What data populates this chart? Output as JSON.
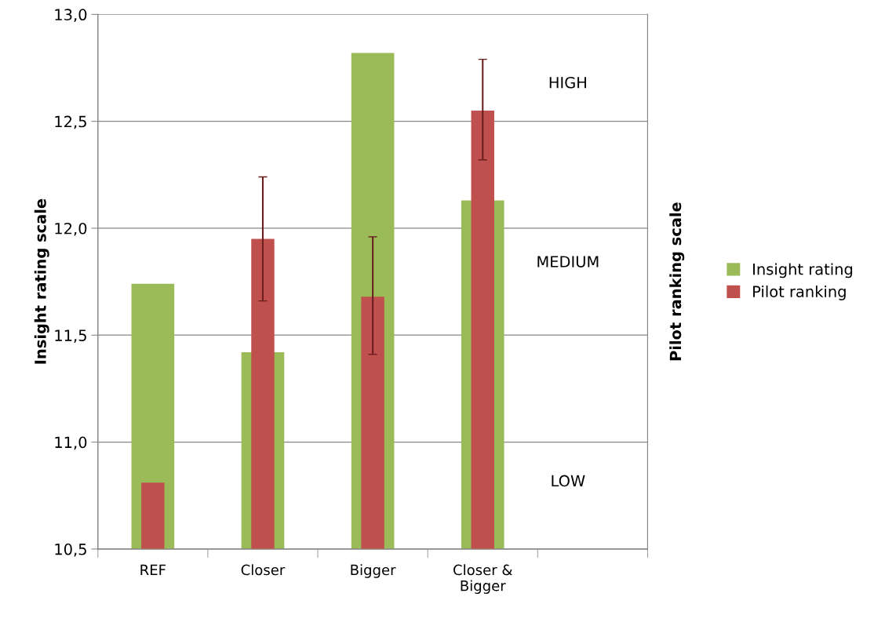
{
  "chart_data": {
    "type": "bar",
    "categories": [
      "REF",
      "Closer",
      "Bigger",
      "Closer &\nBigger",
      null
    ],
    "series": [
      {
        "name": "Insight rating",
        "color": "#9bbb59",
        "values": [
          11.74,
          11.42,
          12.82,
          12.13,
          null
        ]
      },
      {
        "name": "Pilot ranking",
        "color": "#c0504d",
        "values": [
          10.81,
          11.95,
          11.68,
          12.55,
          null
        ],
        "errors": [
          null,
          [
            11.66,
            12.24
          ],
          [
            11.41,
            11.96
          ],
          [
            12.32,
            12.79
          ],
          null
        ]
      }
    ],
    "ylabel": "Insight rating scale",
    "y2label": "Pilot ranking scale",
    "ylim": [
      10.5,
      13.0
    ],
    "yticks": [
      {
        "value": 10.5,
        "label": "10,5"
      },
      {
        "value": 11.0,
        "label": "11,0"
      },
      {
        "value": 11.5,
        "label": "11,5"
      },
      {
        "value": 12.0,
        "label": "12,0"
      },
      {
        "value": 12.5,
        "label": "12,5"
      },
      {
        "value": 13.0,
        "label": "13,0"
      }
    ],
    "annotations": [
      "HIGH",
      "MEDIUM",
      "LOW"
    ],
    "grid": "y",
    "legend": "right"
  }
}
